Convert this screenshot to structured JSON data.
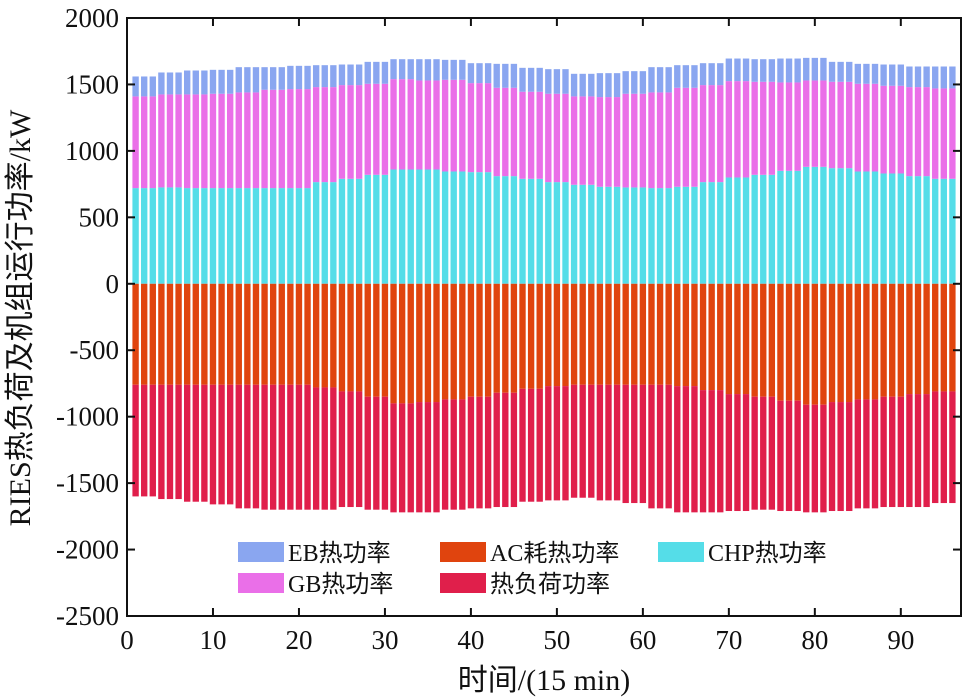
{
  "chart_data": {
    "type": "bar",
    "stacked": true,
    "xlabel": "时间/(15 min)",
    "ylabel": "RIES热负荷及机组运行功率/kW",
    "xlim": [
      0,
      97
    ],
    "ylim": [
      -2500,
      2000
    ],
    "xticks": [
      0,
      10,
      20,
      30,
      40,
      50,
      60,
      70,
      80,
      90
    ],
    "yticks": [
      -2500,
      -2000,
      -1500,
      -1000,
      -500,
      0,
      500,
      1000,
      1500,
      2000
    ],
    "grid": false,
    "legend_position": "bottom",
    "x": [
      1,
      2,
      3,
      4,
      5,
      6,
      7,
      8,
      9,
      10,
      11,
      12,
      13,
      14,
      15,
      16,
      17,
      18,
      19,
      20,
      21,
      22,
      23,
      24,
      25,
      26,
      27,
      28,
      29,
      30,
      31,
      32,
      33,
      34,
      35,
      36,
      37,
      38,
      39,
      40,
      41,
      42,
      43,
      44,
      45,
      46,
      47,
      48,
      49,
      50,
      51,
      52,
      53,
      54,
      55,
      56,
      57,
      58,
      59,
      60,
      61,
      62,
      63,
      64,
      65,
      66,
      67,
      68,
      69,
      70,
      71,
      72,
      73,
      74,
      75,
      76,
      77,
      78,
      79,
      80,
      81,
      82,
      83,
      84,
      85,
      86,
      87,
      88,
      89,
      90,
      91,
      92,
      93,
      94,
      95,
      96
    ],
    "series": [
      {
        "name": "CHP热功率",
        "color": "#55dde8",
        "values": [
          720,
          720,
          720,
          725,
          725,
          725,
          720,
          720,
          720,
          720,
          720,
          720,
          720,
          720,
          720,
          720,
          720,
          720,
          720,
          720,
          720,
          765,
          765,
          765,
          790,
          790,
          790,
          820,
          820,
          820,
          860,
          860,
          860,
          860,
          860,
          860,
          845,
          845,
          845,
          840,
          840,
          840,
          810,
          810,
          810,
          790,
          790,
          790,
          765,
          765,
          765,
          745,
          745,
          745,
          730,
          730,
          730,
          725,
          725,
          725,
          720,
          720,
          720,
          730,
          730,
          730,
          765,
          765,
          765,
          800,
          800,
          800,
          820,
          820,
          820,
          850,
          850,
          850,
          880,
          880,
          880,
          870,
          870,
          870,
          845,
          845,
          845,
          830,
          830,
          830,
          810,
          810,
          810,
          790,
          790,
          790
        ]
      },
      {
        "name": "GB热功率",
        "color": "#ea6fe8",
        "values": [
          690,
          690,
          690,
          700,
          700,
          700,
          705,
          705,
          705,
          710,
          710,
          710,
          720,
          720,
          720,
          740,
          740,
          740,
          745,
          745,
          745,
          715,
          715,
          715,
          705,
          705,
          705,
          685,
          685,
          685,
          680,
          680,
          680,
          670,
          670,
          670,
          690,
          690,
          690,
          670,
          670,
          670,
          665,
          665,
          665,
          655,
          655,
          655,
          665,
          665,
          665,
          665,
          665,
          665,
          675,
          675,
          675,
          705,
          705,
          705,
          720,
          720,
          720,
          745,
          745,
          745,
          730,
          730,
          730,
          725,
          725,
          725,
          700,
          700,
          700,
          665,
          665,
          665,
          650,
          650,
          650,
          650,
          650,
          650,
          660,
          660,
          660,
          660,
          660,
          660,
          670,
          670,
          670,
          680,
          680,
          680
        ]
      },
      {
        "name": "EB热功率",
        "color": "#8aa6f0",
        "values": [
          150,
          150,
          150,
          165,
          165,
          165,
          180,
          180,
          180,
          180,
          180,
          180,
          190,
          190,
          190,
          170,
          170,
          170,
          175,
          175,
          175,
          165,
          165,
          165,
          155,
          155,
          155,
          165,
          165,
          165,
          150,
          150,
          150,
          160,
          160,
          160,
          150,
          150,
          150,
          150,
          150,
          150,
          180,
          180,
          180,
          180,
          180,
          180,
          185,
          185,
          185,
          170,
          170,
          170,
          180,
          180,
          180,
          170,
          170,
          170,
          190,
          190,
          190,
          170,
          170,
          170,
          165,
          165,
          165,
          170,
          170,
          170,
          170,
          170,
          170,
          180,
          180,
          180,
          170,
          170,
          170,
          150,
          150,
          150,
          150,
          150,
          150,
          160,
          160,
          160,
          155,
          155,
          155,
          165,
          165,
          165
        ]
      },
      {
        "name": "AC耗热功率",
        "color": "#e0440e",
        "values": [
          -760,
          -760,
          -760,
          -760,
          -760,
          -760,
          -760,
          -760,
          -760,
          -760,
          -760,
          -760,
          -760,
          -760,
          -760,
          -760,
          -760,
          -760,
          -760,
          -760,
          -760,
          -780,
          -780,
          -780,
          -810,
          -810,
          -810,
          -850,
          -850,
          -850,
          -900,
          -900,
          -900,
          -890,
          -890,
          -890,
          -870,
          -870,
          -870,
          -850,
          -850,
          -850,
          -820,
          -820,
          -820,
          -790,
          -790,
          -790,
          -770,
          -770,
          -770,
          -760,
          -760,
          -760,
          -760,
          -760,
          -760,
          -760,
          -760,
          -760,
          -760,
          -760,
          -760,
          -770,
          -770,
          -770,
          -800,
          -800,
          -800,
          -830,
          -830,
          -830,
          -850,
          -850,
          -850,
          -880,
          -880,
          -880,
          -910,
          -910,
          -910,
          -890,
          -890,
          -890,
          -870,
          -870,
          -870,
          -850,
          -850,
          -850,
          -830,
          -830,
          -830,
          -810,
          -810,
          -810
        ]
      },
      {
        "name": "热负荷功率",
        "color": "#e01f4b",
        "values": [
          -840,
          -840,
          -840,
          -860,
          -860,
          -860,
          -880,
          -880,
          -880,
          -900,
          -900,
          -900,
          -930,
          -930,
          -930,
          -940,
          -940,
          -940,
          -940,
          -940,
          -940,
          -920,
          -920,
          -920,
          -870,
          -870,
          -870,
          -850,
          -850,
          -850,
          -820,
          -820,
          -820,
          -830,
          -830,
          -830,
          -830,
          -830,
          -830,
          -840,
          -840,
          -840,
          -860,
          -860,
          -860,
          -850,
          -850,
          -850,
          -860,
          -860,
          -860,
          -850,
          -850,
          -850,
          -870,
          -870,
          -870,
          -890,
          -890,
          -890,
          -930,
          -930,
          -930,
          -950,
          -950,
          -950,
          -920,
          -920,
          -920,
          -880,
          -880,
          -880,
          -850,
          -850,
          -850,
          -830,
          -830,
          -830,
          -810,
          -810,
          -810,
          -820,
          -820,
          -820,
          -820,
          -820,
          -820,
          -830,
          -830,
          -830,
          -850,
          -850,
          -850,
          -840,
          -840,
          -840
        ]
      }
    ]
  }
}
